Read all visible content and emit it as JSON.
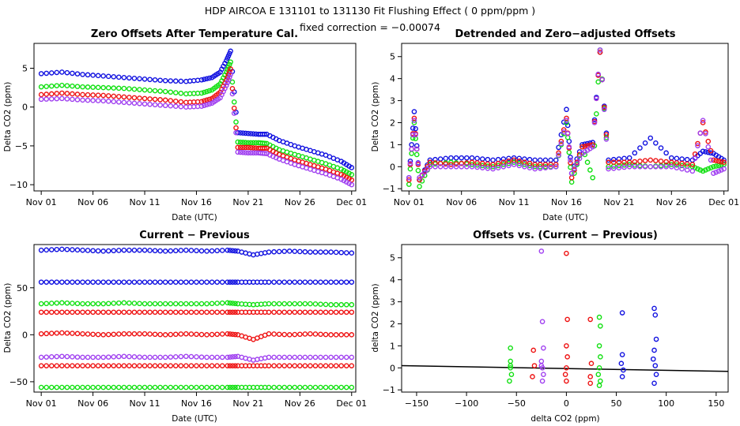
{
  "figure": {
    "title": "HDP   AIRCOA E   131101 to 131130   Fit Flushing Effect ( 0 ppm/ppm )",
    "subtitle": "fixed correction = −0.00074"
  },
  "colors": {
    "blue": "#1010e0",
    "green": "#10e010",
    "red": "#ee1010",
    "purple": "#a040f0",
    "black": "#000000"
  },
  "chart_data": [
    {
      "type": "scatter",
      "title": "Zero Offsets After Temperature Cal.",
      "xlabel": "Date (UTC)",
      "ylabel": "Delta CO2 (ppm)",
      "xlim": [
        0.3,
        31.4
      ],
      "ylim": [
        -10.8,
        8.2
      ],
      "xticks": [
        1,
        6,
        11,
        16,
        21,
        26,
        31
      ],
      "xtick_labels": [
        "Nov 01",
        "Nov 06",
        "Nov 11",
        "Nov 16",
        "Nov 21",
        "Nov 26",
        "Dec 01"
      ],
      "yticks": [
        -10,
        -5,
        0,
        5
      ],
      "ytick_labels": [
        "−10",
        "−5",
        "0",
        "5"
      ],
      "series": [
        {
          "name": "blue",
          "color": "#1010e0",
          "x": [
            1.0,
            3.0,
            5.0,
            7.0,
            9.0,
            11.0,
            13.0,
            15.0,
            16.5,
            17.5,
            18.3,
            18.9,
            19.3,
            20.0,
            21.0,
            22.0,
            22.8,
            24.0,
            25.5,
            27.0,
            28.5,
            30.0,
            31.0
          ],
          "y": [
            4.3,
            4.5,
            4.2,
            4.0,
            3.8,
            3.6,
            3.4,
            3.3,
            3.5,
            3.8,
            4.5,
            6.0,
            7.2,
            -3.3,
            -3.4,
            -3.5,
            -3.5,
            -4.3,
            -5.0,
            -5.6,
            -6.2,
            -7.0,
            -7.8
          ]
        },
        {
          "name": "green",
          "color": "#10e010",
          "x": [
            1.0,
            3.0,
            5.0,
            7.0,
            9.0,
            11.0,
            13.0,
            15.0,
            16.5,
            17.5,
            18.3,
            18.9,
            19.3,
            20.0,
            21.0,
            22.0,
            22.8,
            24.0,
            25.5,
            27.0,
            28.5,
            30.0,
            31.0
          ],
          "y": [
            2.6,
            2.8,
            2.6,
            2.5,
            2.4,
            2.2,
            2.0,
            1.7,
            1.8,
            2.2,
            3.0,
            4.5,
            5.8,
            -4.5,
            -4.6,
            -4.6,
            -4.7,
            -5.5,
            -6.1,
            -6.7,
            -7.3,
            -8.0,
            -8.7
          ]
        },
        {
          "name": "red",
          "color": "#ee1010",
          "x": [
            1.0,
            3.0,
            5.0,
            7.0,
            9.0,
            11.0,
            13.0,
            15.0,
            16.5,
            17.5,
            18.3,
            18.9,
            19.3,
            20.0,
            21.0,
            22.0,
            22.8,
            24.0,
            25.5,
            27.0,
            28.5,
            30.0,
            31.0
          ],
          "y": [
            1.6,
            1.8,
            1.6,
            1.5,
            1.3,
            1.1,
            0.9,
            0.6,
            0.7,
            1.1,
            1.9,
            3.5,
            4.9,
            -5.2,
            -5.2,
            -5.3,
            -5.3,
            -6.1,
            -6.8,
            -7.4,
            -8.0,
            -8.7,
            -9.4
          ]
        },
        {
          "name": "purple",
          "color": "#a040f0",
          "x": [
            1.0,
            3.0,
            5.0,
            7.0,
            9.0,
            11.0,
            13.0,
            15.0,
            16.5,
            17.5,
            18.3,
            18.9,
            19.3,
            20.0,
            21.0,
            22.0,
            22.8,
            24.0,
            25.5,
            27.0,
            28.5,
            30.0,
            31.0
          ],
          "y": [
            1.0,
            1.1,
            0.9,
            0.8,
            0.6,
            0.4,
            0.2,
            0.0,
            0.1,
            0.5,
            1.2,
            2.8,
            4.2,
            -5.8,
            -5.9,
            -5.9,
            -6.0,
            -6.7,
            -7.4,
            -8.0,
            -8.6,
            -9.3,
            -10.0
          ]
        }
      ]
    },
    {
      "type": "scatter",
      "title": "Detrended and Zero−adjusted Offsets",
      "xlabel": "Date (UTC)",
      "ylabel": "Delta CO2 (ppm)",
      "xlim": [
        0.3,
        31.4
      ],
      "ylim": [
        -1.1,
        5.6
      ],
      "xticks": [
        1,
        6,
        11,
        16,
        21,
        26,
        31
      ],
      "xtick_labels": [
        "Nov 01",
        "Nov 06",
        "Nov 11",
        "Nov 16",
        "Nov 21",
        "Nov 26",
        "Dec 01"
      ],
      "yticks": [
        -1,
        0,
        1,
        2,
        3,
        4,
        5
      ],
      "ytick_labels": [
        "−1",
        "0",
        "1",
        "2",
        "3",
        "4",
        "5"
      ],
      "series": [
        {
          "name": "blue",
          "color": "#1010e0",
          "x": [
            1.0,
            1.5,
            2.0,
            3.0,
            5.0,
            7.0,
            9.0,
            11.0,
            13.0,
            15.0,
            16.0,
            16.5,
            17.5,
            18.5,
            19.2,
            20.0,
            22.0,
            24.0,
            26.0,
            28.0,
            29.0,
            30.0,
            31.0
          ],
          "y": [
            -0.5,
            2.5,
            -0.6,
            0.3,
            0.4,
            0.4,
            0.3,
            0.4,
            0.3,
            0.3,
            2.6,
            -0.3,
            1.0,
            1.1,
            5.2,
            0.3,
            0.4,
            1.3,
            0.4,
            0.3,
            0.7,
            0.6,
            0.3
          ]
        },
        {
          "name": "green",
          "color": "#10e010",
          "x": [
            1.0,
            1.5,
            2.0,
            3.0,
            5.0,
            7.0,
            9.0,
            11.0,
            13.0,
            15.0,
            16.0,
            16.5,
            17.5,
            18.5,
            19.2,
            20.0,
            22.0,
            24.0,
            26.0,
            28.0,
            29.0,
            30.0,
            31.0
          ],
          "y": [
            -0.8,
            2.0,
            -0.9,
            0.1,
            0.2,
            0.1,
            0.0,
            0.2,
            0.0,
            0.0,
            2.0,
            -0.7,
            0.9,
            -0.5,
            5.3,
            0.0,
            0.1,
            0.0,
            0.1,
            0.0,
            -0.2,
            0.0,
            0.1
          ]
        },
        {
          "name": "red",
          "color": "#ee1010",
          "x": [
            1.0,
            1.5,
            2.0,
            3.0,
            5.0,
            7.0,
            9.0,
            11.0,
            13.0,
            15.0,
            16.0,
            16.5,
            17.5,
            18.5,
            19.2,
            20.0,
            22.0,
            24.0,
            26.0,
            28.0,
            29.0,
            30.0,
            31.0
          ],
          "y": [
            -0.6,
            2.2,
            -0.6,
            0.2,
            0.1,
            0.2,
            0.1,
            0.3,
            0.1,
            0.1,
            2.2,
            -0.5,
            0.9,
            1.0,
            5.2,
            0.2,
            0.2,
            0.3,
            0.2,
            0.1,
            2.0,
            0.3,
            0.2
          ]
        },
        {
          "name": "purple",
          "color": "#a040f0",
          "x": [
            1.0,
            1.5,
            2.0,
            3.0,
            5.0,
            7.0,
            9.0,
            11.0,
            13.0,
            15.0,
            16.0,
            16.5,
            17.5,
            18.5,
            19.2,
            20.0,
            22.0,
            24.0,
            26.0,
            28.0,
            29.0,
            30.0,
            31.0
          ],
          "y": [
            -0.5,
            2.1,
            -0.5,
            0.0,
            0.0,
            0.0,
            -0.1,
            0.1,
            -0.1,
            0.0,
            2.1,
            -0.3,
            0.6,
            0.9,
            5.3,
            -0.1,
            0.0,
            0.0,
            0.0,
            -0.2,
            2.1,
            -0.3,
            -0.1
          ]
        }
      ]
    },
    {
      "type": "scatter",
      "title": "Current − Previous",
      "xlabel": "Date (UTC)",
      "ylabel": "Delta CO2 (ppm)",
      "xlim": [
        0.3,
        31.4
      ],
      "ylim": [
        -61,
        96
      ],
      "xticks": [
        1,
        6,
        11,
        16,
        21,
        26,
        31
      ],
      "xtick_labels": [
        "Nov 01",
        "Nov 06",
        "Nov 11",
        "Nov 16",
        "Nov 21",
        "Nov 26",
        "Dec 01"
      ],
      "yticks": [
        -50,
        0,
        50
      ],
      "ytick_labels": [
        "−50",
        "0",
        "50"
      ],
      "series": [
        {
          "name": "blue band high",
          "color": "#1010e0",
          "x": [
            1,
            3,
            5,
            7,
            9,
            11,
            13,
            15,
            17,
            19,
            20,
            21.5,
            23,
            25,
            27,
            29,
            31
          ],
          "y": [
            90,
            91,
            90,
            89,
            90,
            90,
            89,
            90,
            89,
            90,
            89,
            85,
            88,
            89,
            88,
            88,
            87
          ]
        },
        {
          "name": "blue band low",
          "color": "#1010e0",
          "x": [
            1,
            3,
            5,
            7,
            9,
            11,
            13,
            15,
            17,
            19,
            20,
            21.5,
            23,
            25,
            27,
            29,
            31
          ],
          "y": [
            56,
            56,
            56,
            56,
            56,
            56,
            56,
            56,
            56,
            56,
            56,
            56,
            56,
            56,
            56,
            56,
            56
          ]
        },
        {
          "name": "green band high",
          "color": "#10e010",
          "x": [
            1,
            3,
            5,
            7,
            9,
            11,
            13,
            15,
            17,
            19,
            20,
            21.5,
            23,
            25,
            27,
            29,
            31
          ],
          "y": [
            33,
            34,
            33,
            33,
            34,
            33,
            33,
            33,
            33,
            34,
            33,
            32,
            33,
            33,
            33,
            32,
            32
          ]
        },
        {
          "name": "red band high",
          "color": "#ee1010",
          "x": [
            1,
            3,
            5,
            7,
            9,
            11,
            13,
            15,
            17,
            19,
            20,
            21.5,
            23,
            25,
            27,
            29,
            31
          ],
          "y": [
            24,
            24,
            24,
            24,
            24,
            24,
            24,
            24,
            24,
            24,
            24,
            24,
            24,
            24,
            24,
            24,
            24
          ]
        },
        {
          "name": "red band mid",
          "color": "#ee1010",
          "x": [
            1,
            3,
            5,
            7,
            9,
            11,
            13,
            15,
            17,
            19,
            20,
            21.5,
            23,
            25,
            27,
            29,
            31
          ],
          "y": [
            1,
            2,
            1,
            0,
            1,
            1,
            0,
            1,
            0,
            1,
            0,
            -5,
            1,
            0,
            1,
            0,
            0
          ]
        },
        {
          "name": "purple band",
          "color": "#a040f0",
          "x": [
            1,
            3,
            5,
            7,
            9,
            11,
            13,
            15,
            17,
            19,
            20,
            21.5,
            23,
            25,
            27,
            29,
            31
          ],
          "y": [
            -24,
            -23,
            -24,
            -24,
            -23,
            -24,
            -24,
            -23,
            -24,
            -24,
            -23,
            -27,
            -24,
            -24,
            -24,
            -24,
            -24
          ]
        },
        {
          "name": "red band low",
          "color": "#ee1010",
          "x": [
            1,
            3,
            5,
            7,
            9,
            11,
            13,
            15,
            17,
            19,
            20,
            21.5,
            23,
            25,
            27,
            29,
            31
          ],
          "y": [
            -33,
            -33,
            -33,
            -33,
            -33,
            -33,
            -33,
            -33,
            -33,
            -33,
            -33,
            -33,
            -33,
            -33,
            -33,
            -33,
            -33
          ]
        },
        {
          "name": "green band low",
          "color": "#10e010",
          "x": [
            1,
            3,
            5,
            7,
            9,
            11,
            13,
            15,
            17,
            19,
            20,
            21.5,
            23,
            25,
            27,
            29,
            31
          ],
          "y": [
            -56,
            -56,
            -56,
            -56,
            -56,
            -56,
            -56,
            -56,
            -56,
            -56,
            -56,
            -56,
            -56,
            -56,
            -56,
            -56,
            -56
          ]
        }
      ]
    },
    {
      "type": "scatter",
      "title": "Offsets vs. (Current − Previous)",
      "xlabel": "delta CO2 (ppm)",
      "ylabel": "delta CO2 (ppm)",
      "xlim": [
        -165,
        162
      ],
      "ylim": [
        -1.1,
        5.6
      ],
      "xticks": [
        -150,
        -100,
        -50,
        0,
        50,
        100,
        150
      ],
      "xtick_labels": [
        "−150",
        "−100",
        "−50",
        "0",
        "50",
        "100",
        "150"
      ],
      "yticks": [
        -1,
        0,
        1,
        2,
        3,
        4,
        5
      ],
      "ytick_labels": [
        "−1",
        "0",
        "1",
        "2",
        "3",
        "4",
        "5"
      ],
      "fit_line": {
        "x": [
          -165,
          162
        ],
        "y": [
          0.1,
          -0.16
        ]
      },
      "series": [
        {
          "name": "green left",
          "color": "#10e010",
          "x": [
            -56,
            -56,
            -56,
            -55,
            -57,
            -56
          ],
          "y": [
            0.9,
            0.3,
            0.0,
            -0.3,
            -0.6,
            0.1
          ]
        },
        {
          "name": "purple left",
          "color": "#a040f0",
          "x": [
            -25,
            -24,
            -23,
            -25,
            -24,
            -23,
            -24,
            -25
          ],
          "y": [
            5.3,
            2.1,
            0.9,
            0.3,
            0.0,
            -0.3,
            -0.6,
            0.1
          ]
        },
        {
          "name": "red cluster",
          "color": "#ee1010",
          "x": [
            -33,
            -32,
            -34,
            0,
            1,
            0,
            1,
            0,
            -1,
            0,
            24,
            25,
            24,
            24
          ],
          "y": [
            0.8,
            0.1,
            -0.4,
            5.2,
            2.2,
            1.0,
            0.5,
            0.0,
            -0.3,
            -0.6,
            2.2,
            0.2,
            -0.4,
            -0.7
          ]
        },
        {
          "name": "green right",
          "color": "#10e010",
          "x": [
            33,
            34,
            33,
            34,
            33,
            32,
            34,
            33
          ],
          "y": [
            2.3,
            1.9,
            1.0,
            0.5,
            0.0,
            -0.3,
            -0.6,
            -0.8
          ]
        },
        {
          "name": "blue cluster",
          "color": "#1010e0",
          "x": [
            56,
            56,
            55,
            57,
            56,
            88,
            89,
            90,
            88,
            87,
            89,
            90,
            88
          ],
          "y": [
            2.5,
            0.6,
            0.2,
            -0.1,
            -0.4,
            2.7,
            2.4,
            1.3,
            0.8,
            0.4,
            0.1,
            -0.3,
            -0.7
          ]
        }
      ]
    }
  ]
}
